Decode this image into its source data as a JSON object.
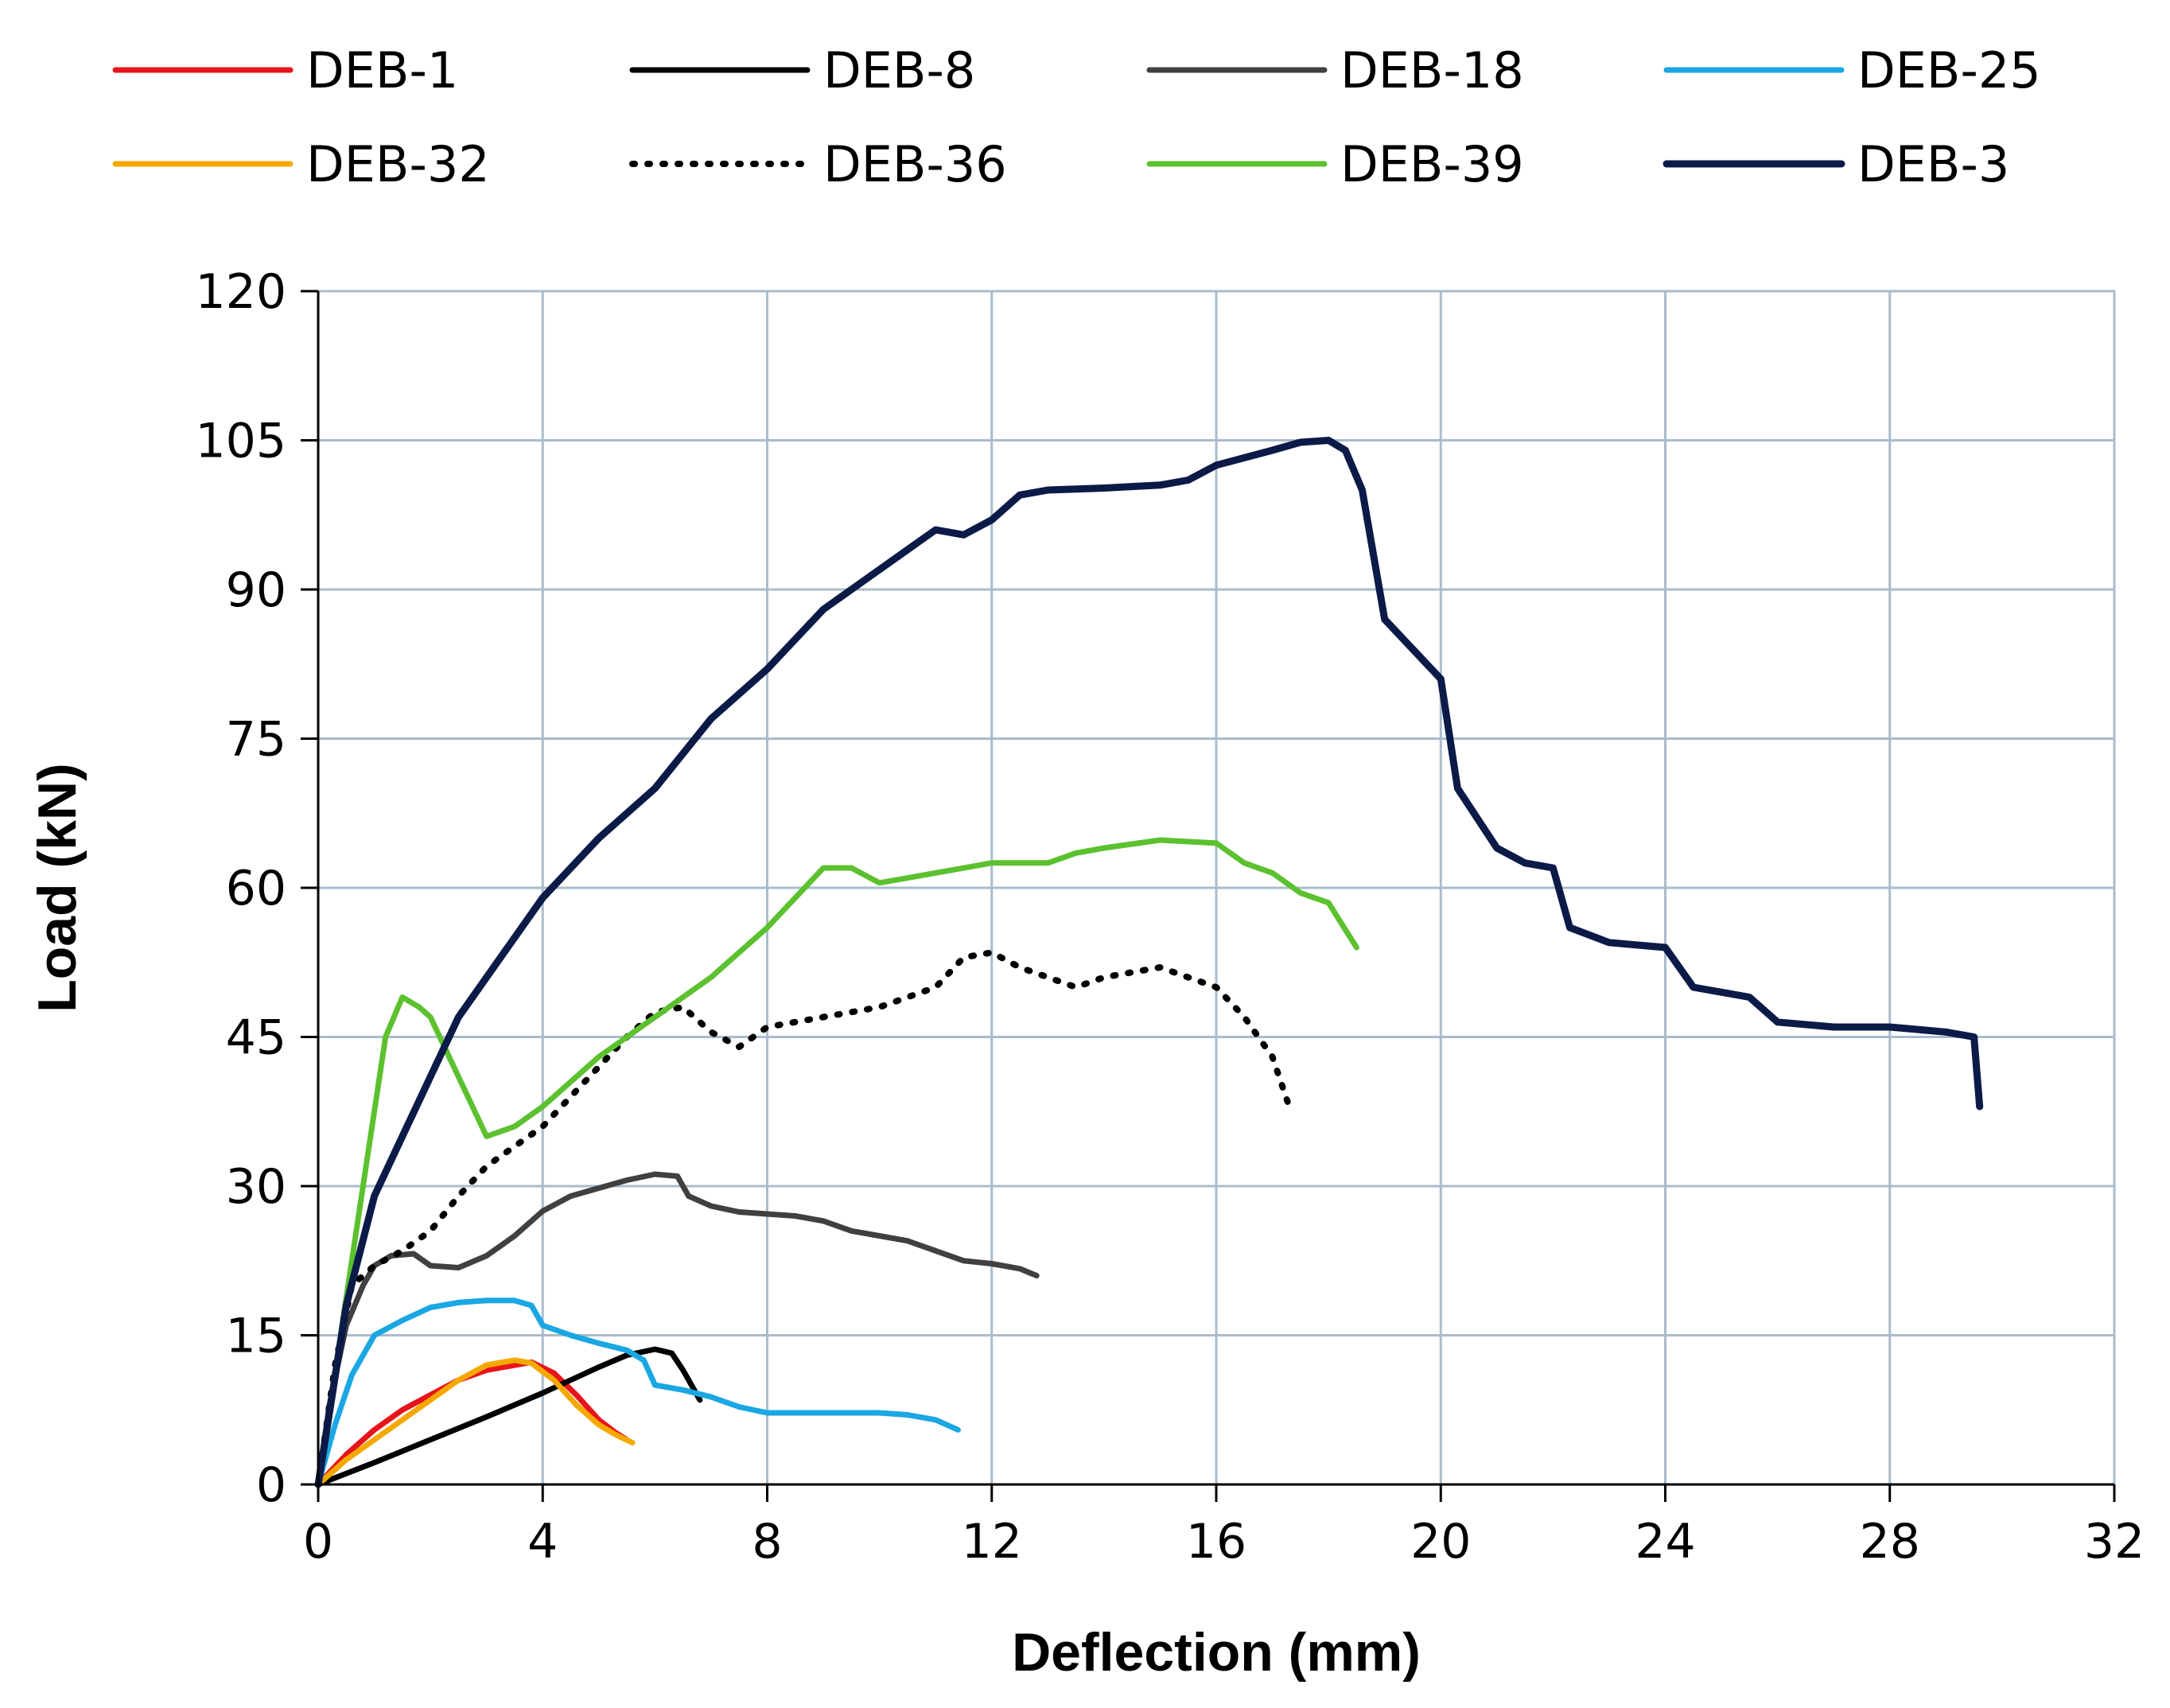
{
  "chart_data": {
    "type": "line",
    "title": "",
    "xlabel": "Deflection (mm)",
    "ylabel": "Load (kN)",
    "xlim": [
      0,
      32
    ],
    "ylim": [
      0,
      120
    ],
    "xticks": [
      "0",
      "4",
      "8",
      "12",
      "16",
      "20",
      "24",
      "28",
      "32"
    ],
    "yticks": [
      "0",
      "15",
      "30",
      "45",
      "60",
      "75",
      "90",
      "105",
      "120"
    ],
    "grid": true,
    "legend_position": "top",
    "series": [
      {
        "name": "DEB-1",
        "color": "#e8141b",
        "style": "solid",
        "points": [
          [
            0,
            0
          ],
          [
            0.5,
            3
          ],
          [
            1,
            5.5
          ],
          [
            1.5,
            7.5
          ],
          [
            2,
            9
          ],
          [
            2.5,
            10.5
          ],
          [
            3,
            11.5
          ],
          [
            3.5,
            12
          ],
          [
            3.8,
            12.3
          ],
          [
            4.2,
            11.2
          ],
          [
            4.6,
            9
          ],
          [
            5,
            6.5
          ],
          [
            5.3,
            5.2
          ],
          [
            5.5,
            4.5
          ]
        ]
      },
      {
        "name": "DEB-8",
        "color": "#000000",
        "style": "solid",
        "points": [
          [
            0,
            0
          ],
          [
            1,
            2.2
          ],
          [
            2,
            4.5
          ],
          [
            3,
            6.8
          ],
          [
            4,
            9.2
          ],
          [
            5,
            11.8
          ],
          [
            5.5,
            13
          ],
          [
            6,
            13.6
          ],
          [
            6.3,
            13.2
          ],
          [
            6.5,
            11.5
          ],
          [
            6.7,
            9.5
          ],
          [
            6.8,
            8.5
          ]
        ]
      },
      {
        "name": "DEB-18",
        "color": "#404040",
        "style": "solid",
        "points": [
          [
            0,
            0
          ],
          [
            0.2,
            8
          ],
          [
            0.5,
            16
          ],
          [
            0.8,
            20
          ],
          [
            1,
            22
          ],
          [
            1.3,
            23
          ],
          [
            1.7,
            23.2
          ],
          [
            2,
            22
          ],
          [
            2.5,
            21.8
          ],
          [
            3,
            23
          ],
          [
            3.5,
            25
          ],
          [
            4,
            27.5
          ],
          [
            4.5,
            29
          ],
          [
            5,
            29.8
          ],
          [
            5.5,
            30.6
          ],
          [
            6,
            31.2
          ],
          [
            6.4,
            31
          ],
          [
            6.6,
            29
          ],
          [
            7,
            28
          ],
          [
            7.5,
            27.4
          ],
          [
            8,
            27.2
          ],
          [
            8.5,
            27
          ],
          [
            9,
            26.5
          ],
          [
            9.5,
            25.5
          ],
          [
            10,
            25
          ],
          [
            10.5,
            24.5
          ],
          [
            11,
            23.5
          ],
          [
            11.5,
            22.5
          ],
          [
            12,
            22.2
          ],
          [
            12.5,
            21.7
          ],
          [
            12.8,
            21
          ]
        ]
      },
      {
        "name": "DEB-25",
        "color": "#1aa7e3",
        "style": "solid",
        "points": [
          [
            0,
            0
          ],
          [
            0.3,
            6
          ],
          [
            0.6,
            11
          ],
          [
            1,
            15
          ],
          [
            1.5,
            16.5
          ],
          [
            2,
            17.8
          ],
          [
            2.5,
            18.3
          ],
          [
            3,
            18.5
          ],
          [
            3.5,
            18.5
          ],
          [
            3.8,
            18
          ],
          [
            4,
            16
          ],
          [
            4.5,
            15
          ],
          [
            5,
            14.2
          ],
          [
            5.5,
            13.5
          ],
          [
            5.8,
            12.5
          ],
          [
            6,
            10
          ],
          [
            6.5,
            9.5
          ],
          [
            7,
            8.8
          ],
          [
            7.5,
            7.8
          ],
          [
            8,
            7.2
          ],
          [
            9,
            7.2
          ],
          [
            10,
            7.2
          ],
          [
            10.5,
            7
          ],
          [
            11,
            6.5
          ],
          [
            11.4,
            5.5
          ]
        ]
      },
      {
        "name": "DEB-32",
        "color": "#f5a800",
        "style": "solid",
        "points": [
          [
            0,
            0
          ],
          [
            0.5,
            2.5
          ],
          [
            1,
            4.5
          ],
          [
            1.5,
            6.5
          ],
          [
            2,
            8.5
          ],
          [
            2.5,
            10.5
          ],
          [
            3,
            12
          ],
          [
            3.5,
            12.5
          ],
          [
            3.8,
            12.2
          ],
          [
            4.2,
            10.5
          ],
          [
            4.6,
            8
          ],
          [
            5,
            6
          ],
          [
            5.3,
            5
          ],
          [
            5.6,
            4.2
          ]
        ]
      },
      {
        "name": "DEB-36",
        "color": "#000000",
        "style": "dotted",
        "points": [
          [
            0,
            0
          ],
          [
            0.3,
            12
          ],
          [
            0.6,
            20
          ],
          [
            1,
            22
          ],
          [
            1.5,
            23.5
          ],
          [
            2,
            25.5
          ],
          [
            2.5,
            29
          ],
          [
            3,
            32
          ],
          [
            3.5,
            34
          ],
          [
            4,
            36
          ],
          [
            4.5,
            39
          ],
          [
            5,
            42
          ],
          [
            5.5,
            45
          ],
          [
            6,
            47.5
          ],
          [
            6.5,
            48
          ],
          [
            7,
            45.5
          ],
          [
            7.5,
            44
          ],
          [
            8,
            46
          ],
          [
            9,
            47
          ],
          [
            10,
            48
          ],
          [
            11,
            50
          ],
          [
            11.5,
            53
          ],
          [
            12,
            53.5
          ],
          [
            12.5,
            52
          ],
          [
            13,
            51
          ],
          [
            13.5,
            50
          ],
          [
            14,
            51
          ],
          [
            15,
            52
          ],
          [
            15.5,
            51
          ],
          [
            16,
            50
          ],
          [
            16.5,
            47
          ],
          [
            17,
            43
          ],
          [
            17.3,
            38
          ]
        ]
      },
      {
        "name": "DEB-39",
        "color": "#5cc12f",
        "style": "solid",
        "points": [
          [
            0,
            0
          ],
          [
            0.4,
            15
          ],
          [
            0.8,
            30
          ],
          [
            1.2,
            45
          ],
          [
            1.5,
            49
          ],
          [
            1.8,
            48
          ],
          [
            2,
            47
          ],
          [
            2.5,
            41
          ],
          [
            3,
            35
          ],
          [
            3.5,
            36
          ],
          [
            4,
            38
          ],
          [
            5,
            43
          ],
          [
            6,
            47
          ],
          [
            7,
            51
          ],
          [
            8,
            56
          ],
          [
            9,
            62
          ],
          [
            9.5,
            62
          ],
          [
            10,
            60.5
          ],
          [
            11,
            61.5
          ],
          [
            12,
            62.5
          ],
          [
            13,
            62.5
          ],
          [
            13.5,
            63.5
          ],
          [
            14,
            64
          ],
          [
            15,
            64.8
          ],
          [
            16,
            64.5
          ],
          [
            16.5,
            62.5
          ],
          [
            17,
            61.5
          ],
          [
            17.5,
            59.5
          ],
          [
            18,
            58.5
          ],
          [
            18.5,
            54
          ]
        ]
      },
      {
        "name": "DEB-3",
        "color": "#0c1a48",
        "style": "solid",
        "points": [
          [
            0,
            0
          ],
          [
            0.5,
            18
          ],
          [
            1,
            29
          ],
          [
            1.5,
            35
          ],
          [
            2,
            41
          ],
          [
            2.5,
            47
          ],
          [
            3,
            51
          ],
          [
            4,
            59
          ],
          [
            5,
            65
          ],
          [
            6,
            70
          ],
          [
            7,
            77
          ],
          [
            8,
            82
          ],
          [
            9,
            88
          ],
          [
            10,
            92
          ],
          [
            11,
            96
          ],
          [
            11.5,
            95.5
          ],
          [
            12,
            97
          ],
          [
            12.5,
            99.5
          ],
          [
            13,
            100
          ],
          [
            14,
            100.2
          ],
          [
            15,
            100.5
          ],
          [
            15.5,
            101
          ],
          [
            16,
            102.5
          ],
          [
            17,
            104
          ],
          [
            17.5,
            104.8
          ],
          [
            18,
            105
          ],
          [
            18.3,
            104
          ],
          [
            18.6,
            100
          ],
          [
            19,
            87
          ],
          [
            19.5,
            84
          ],
          [
            20,
            81
          ],
          [
            20.3,
            70
          ],
          [
            21,
            64
          ],
          [
            21.5,
            62.5
          ],
          [
            22,
            62
          ],
          [
            22.3,
            56
          ],
          [
            23,
            54.5
          ],
          [
            24,
            54
          ],
          [
            24.5,
            50
          ],
          [
            25.5,
            49
          ],
          [
            26,
            46.5
          ],
          [
            27,
            46
          ],
          [
            28,
            46
          ],
          [
            29,
            45.5
          ],
          [
            29.5,
            45
          ],
          [
            29.6,
            38
          ]
        ]
      }
    ]
  }
}
